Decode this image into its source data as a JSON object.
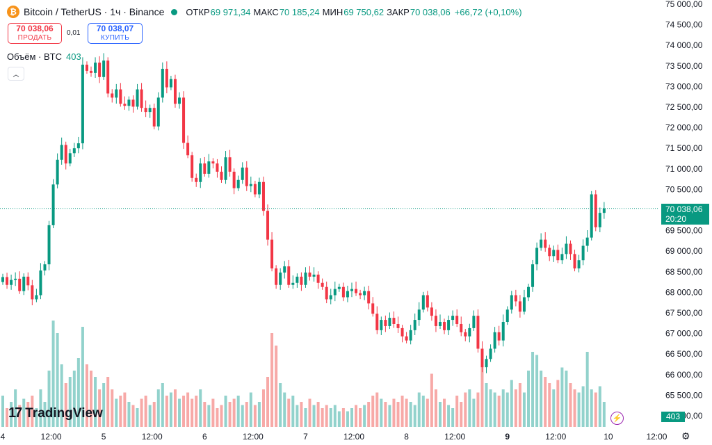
{
  "header": {
    "symbol": "Bitcoin / TetherUS · 1ч · Binance",
    "open_label": "ОТКР",
    "open": "69 971,34",
    "high_label": "МАКС",
    "high": "70 185,24",
    "low_label": "МИН",
    "low": "69 750,62",
    "close_label": "ЗАКР",
    "close": "70 038,06",
    "change": "+66,72 (+0,10%)"
  },
  "trade": {
    "sell_price": "70 038,06",
    "sell_label": "ПРОДАТЬ",
    "spread": "0,01",
    "buy_price": "70 038,07",
    "buy_label": "КУПИТЬ"
  },
  "volume_legend": {
    "label": "Объём · BTC",
    "value": "403"
  },
  "logo_text": "TradingView",
  "price_tag": {
    "price": "70 038,06",
    "countdown": "20:20"
  },
  "volume_tag": "403",
  "colors": {
    "up": "#089981",
    "down": "#f23645",
    "up_vol": "#92d2cc",
    "down_vol": "#f7a9a7"
  },
  "chart_data": {
    "type": "candlestick",
    "price_axis": {
      "min": 65000,
      "max": 75000,
      "ticks": [
        "75 000,00",
        "74 500,00",
        "74 000,00",
        "73 500,00",
        "73 000,00",
        "72 500,00",
        "72 000,00",
        "71 500,00",
        "71 000,00",
        "70 500,00",
        "70 000,00",
        "69 500,00",
        "69 000,00",
        "68 500,00",
        "68 000,00",
        "67 500,00",
        "67 000,00",
        "66 500,00",
        "66 000,00",
        "65 500,00",
        "65 000,00"
      ],
      "tick_values": [
        75000,
        74500,
        74000,
        73500,
        73000,
        72500,
        72000,
        71500,
        71000,
        70500,
        70000,
        69500,
        69000,
        68500,
        68000,
        67500,
        67000,
        66500,
        66000,
        65500,
        65000
      ]
    },
    "time_axis": {
      "labels": [
        "4",
        "12:00",
        "5",
        "12:00",
        "6",
        "12:00",
        "7",
        "12:00",
        "8",
        "12:00",
        "9",
        "12:00",
        "10",
        "12:00"
      ],
      "bold": [
        false,
        false,
        false,
        false,
        false,
        false,
        false,
        false,
        false,
        false,
        true,
        false,
        false,
        false
      ],
      "positions": [
        0,
        11.5,
        24,
        35.5,
        48,
        59.5,
        72,
        83.5,
        96,
        107.5,
        120,
        131.5,
        144,
        155.5
      ]
    },
    "current_price": 70038.06,
    "candles": [
      {
        "c": 68370,
        "v": 50
      },
      {
        "c": 68180,
        "v": 30
      },
      {
        "c": 68300,
        "v": 40
      },
      {
        "c": 68330,
        "v": 60
      },
      {
        "c": 68030,
        "v": 35
      },
      {
        "c": 68380,
        "v": 45
      },
      {
        "c": 68170,
        "v": 40
      },
      {
        "c": 67830,
        "v": 50
      },
      {
        "c": 67930,
        "v": 30
      },
      {
        "c": 68530,
        "v": 60
      },
      {
        "c": 68680,
        "v": 40
      },
      {
        "c": 69630,
        "v": 90
      },
      {
        "c": 70620,
        "v": 170
      },
      {
        "c": 71220,
        "v": 150
      },
      {
        "c": 71580,
        "v": 100
      },
      {
        "c": 71130,
        "v": 70
      },
      {
        "c": 71380,
        "v": 80
      },
      {
        "c": 71500,
        "v": 90
      },
      {
        "c": 71620,
        "v": 110
      },
      {
        "c": 73530,
        "v": 160
      },
      {
        "c": 73380,
        "v": 100
      },
      {
        "c": 73330,
        "v": 90
      },
      {
        "c": 73580,
        "v": 80
      },
      {
        "c": 73230,
        "v": 60
      },
      {
        "c": 73630,
        "v": 70
      },
      {
        "c": 72830,
        "v": 80
      },
      {
        "c": 72730,
        "v": 60
      },
      {
        "c": 72930,
        "v": 45
      },
      {
        "c": 72580,
        "v": 50
      },
      {
        "c": 72530,
        "v": 55
      },
      {
        "c": 72680,
        "v": 40
      },
      {
        "c": 72510,
        "v": 35
      },
      {
        "c": 72930,
        "v": 30
      },
      {
        "c": 72480,
        "v": 45
      },
      {
        "c": 72380,
        "v": 50
      },
      {
        "c": 72480,
        "v": 35
      },
      {
        "c": 72030,
        "v": 40
      },
      {
        "c": 72730,
        "v": 60
      },
      {
        "c": 73430,
        "v": 70
      },
      {
        "c": 72980,
        "v": 50
      },
      {
        "c": 73180,
        "v": 55
      },
      {
        "c": 72580,
        "v": 60
      },
      {
        "c": 72730,
        "v": 45
      },
      {
        "c": 71630,
        "v": 50
      },
      {
        "c": 71330,
        "v": 55
      },
      {
        "c": 70780,
        "v": 45
      },
      {
        "c": 70680,
        "v": 50
      },
      {
        "c": 71130,
        "v": 60
      },
      {
        "c": 70880,
        "v": 40
      },
      {
        "c": 71180,
        "v": 35
      },
      {
        "c": 71130,
        "v": 45
      },
      {
        "c": 70930,
        "v": 30
      },
      {
        "c": 70730,
        "v": 35
      },
      {
        "c": 71280,
        "v": 50
      },
      {
        "c": 70930,
        "v": 40
      },
      {
        "c": 70530,
        "v": 45
      },
      {
        "c": 70730,
        "v": 50
      },
      {
        "c": 71030,
        "v": 35
      },
      {
        "c": 70580,
        "v": 40
      },
      {
        "c": 70630,
        "v": 55
      },
      {
        "c": 70380,
        "v": 35
      },
      {
        "c": 70680,
        "v": 40
      },
      {
        "c": 69980,
        "v": 60
      },
      {
        "c": 69280,
        "v": 80
      },
      {
        "c": 68580,
        "v": 150
      },
      {
        "c": 68180,
        "v": 130
      },
      {
        "c": 68480,
        "v": 70
      },
      {
        "c": 68630,
        "v": 55
      },
      {
        "c": 68180,
        "v": 45
      },
      {
        "c": 68230,
        "v": 50
      },
      {
        "c": 68380,
        "v": 35
      },
      {
        "c": 68180,
        "v": 40
      },
      {
        "c": 68480,
        "v": 30
      },
      {
        "c": 68380,
        "v": 45
      },
      {
        "c": 68430,
        "v": 35
      },
      {
        "c": 68230,
        "v": 40
      },
      {
        "c": 68130,
        "v": 30
      },
      {
        "c": 67830,
        "v": 35
      },
      {
        "c": 67930,
        "v": 30
      },
      {
        "c": 68080,
        "v": 35
      },
      {
        "c": 68130,
        "v": 25
      },
      {
        "c": 67880,
        "v": 30
      },
      {
        "c": 68030,
        "v": 25
      },
      {
        "c": 68080,
        "v": 30
      },
      {
        "c": 67980,
        "v": 35
      },
      {
        "c": 67930,
        "v": 30
      },
      {
        "c": 68030,
        "v": 35
      },
      {
        "c": 67730,
        "v": 40
      },
      {
        "c": 67480,
        "v": 50
      },
      {
        "c": 67080,
        "v": 55
      },
      {
        "c": 67330,
        "v": 45
      },
      {
        "c": 67180,
        "v": 40
      },
      {
        "c": 67380,
        "v": 35
      },
      {
        "c": 67230,
        "v": 45
      },
      {
        "c": 67130,
        "v": 40
      },
      {
        "c": 66930,
        "v": 50
      },
      {
        "c": 66830,
        "v": 45
      },
      {
        "c": 67080,
        "v": 40
      },
      {
        "c": 67330,
        "v": 35
      },
      {
        "c": 67580,
        "v": 55
      },
      {
        "c": 67930,
        "v": 50
      },
      {
        "c": 67630,
        "v": 45
      },
      {
        "c": 67430,
        "v": 85
      },
      {
        "c": 67180,
        "v": 60
      },
      {
        "c": 67280,
        "v": 40
      },
      {
        "c": 67080,
        "v": 45
      },
      {
        "c": 67330,
        "v": 35
      },
      {
        "c": 67430,
        "v": 30
      },
      {
        "c": 67230,
        "v": 50
      },
      {
        "c": 67030,
        "v": 40
      },
      {
        "c": 66930,
        "v": 55
      },
      {
        "c": 67130,
        "v": 60
      },
      {
        "c": 67430,
        "v": 45
      },
      {
        "c": 66630,
        "v": 55
      },
      {
        "c": 66180,
        "v": 100
      },
      {
        "c": 66380,
        "v": 70
      },
      {
        "c": 66630,
        "v": 60
      },
      {
        "c": 67030,
        "v": 55
      },
      {
        "c": 66830,
        "v": 50
      },
      {
        "c": 67280,
        "v": 60
      },
      {
        "c": 67580,
        "v": 55
      },
      {
        "c": 67930,
        "v": 75
      },
      {
        "c": 67780,
        "v": 60
      },
      {
        "c": 67530,
        "v": 70
      },
      {
        "c": 67880,
        "v": 55
      },
      {
        "c": 68130,
        "v": 90
      },
      {
        "c": 68680,
        "v": 120
      },
      {
        "c": 69080,
        "v": 115
      },
      {
        "c": 69280,
        "v": 90
      },
      {
        "c": 69080,
        "v": 80
      },
      {
        "c": 68880,
        "v": 70
      },
      {
        "c": 69030,
        "v": 60
      },
      {
        "c": 68780,
        "v": 75
      },
      {
        "c": 68930,
        "v": 95
      },
      {
        "c": 69180,
        "v": 90
      },
      {
        "c": 68930,
        "v": 70
      },
      {
        "c": 68580,
        "v": 60
      },
      {
        "c": 68780,
        "v": 55
      },
      {
        "c": 69130,
        "v": 65
      },
      {
        "c": 69330,
        "v": 120
      },
      {
        "c": 70380,
        "v": 60
      },
      {
        "c": 69580,
        "v": 55
      },
      {
        "c": 69930,
        "v": 65
      },
      {
        "c": 70038.06,
        "v": 40
      }
    ]
  }
}
